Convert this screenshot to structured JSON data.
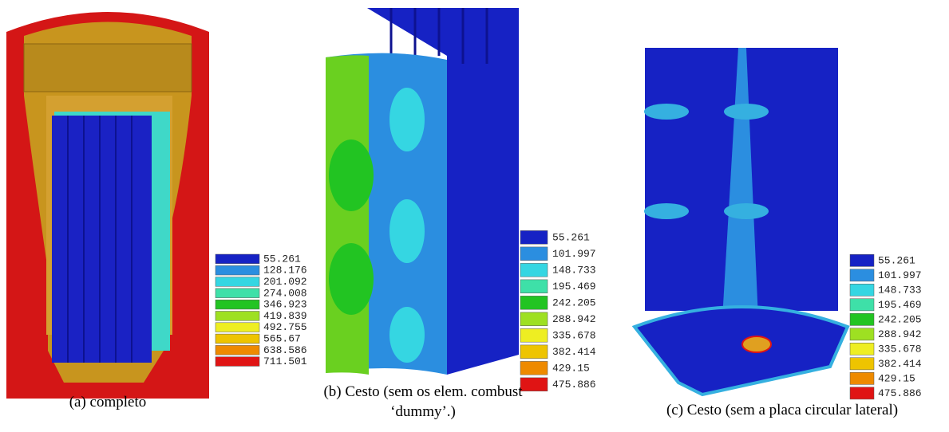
{
  "legend_colors": [
    "#1622c4",
    "#2b8ee0",
    "#35d6e2",
    "#3ee0a8",
    "#22c422",
    "#9ee022",
    "#eeee22",
    "#eec400",
    "#ee8a00",
    "#e01414"
  ],
  "panels": [
    {
      "caption": [
        "(a) completo"
      ],
      "legend": [
        "55.261",
        "128.176",
        "201.092",
        "274.008",
        "346.923",
        "419.839",
        "492.755",
        "565.67",
        "638.586",
        "711.501"
      ]
    },
    {
      "caption": [
        "(b) Cesto (sem os elem. combust",
        "‘dummy’.)"
      ],
      "legend": [
        "55.261",
        "101.997",
        "148.733",
        "195.469",
        "242.205",
        "288.942",
        "335.678",
        "382.414",
        "429.15",
        "475.886"
      ]
    },
    {
      "caption": [
        "(c) Cesto (sem a placa circular lateral)"
      ],
      "legend": [
        "55.261",
        "101.997",
        "148.733",
        "195.469",
        "242.205",
        "288.942",
        "335.678",
        "382.414",
        "429.15",
        "475.886"
      ]
    }
  ]
}
